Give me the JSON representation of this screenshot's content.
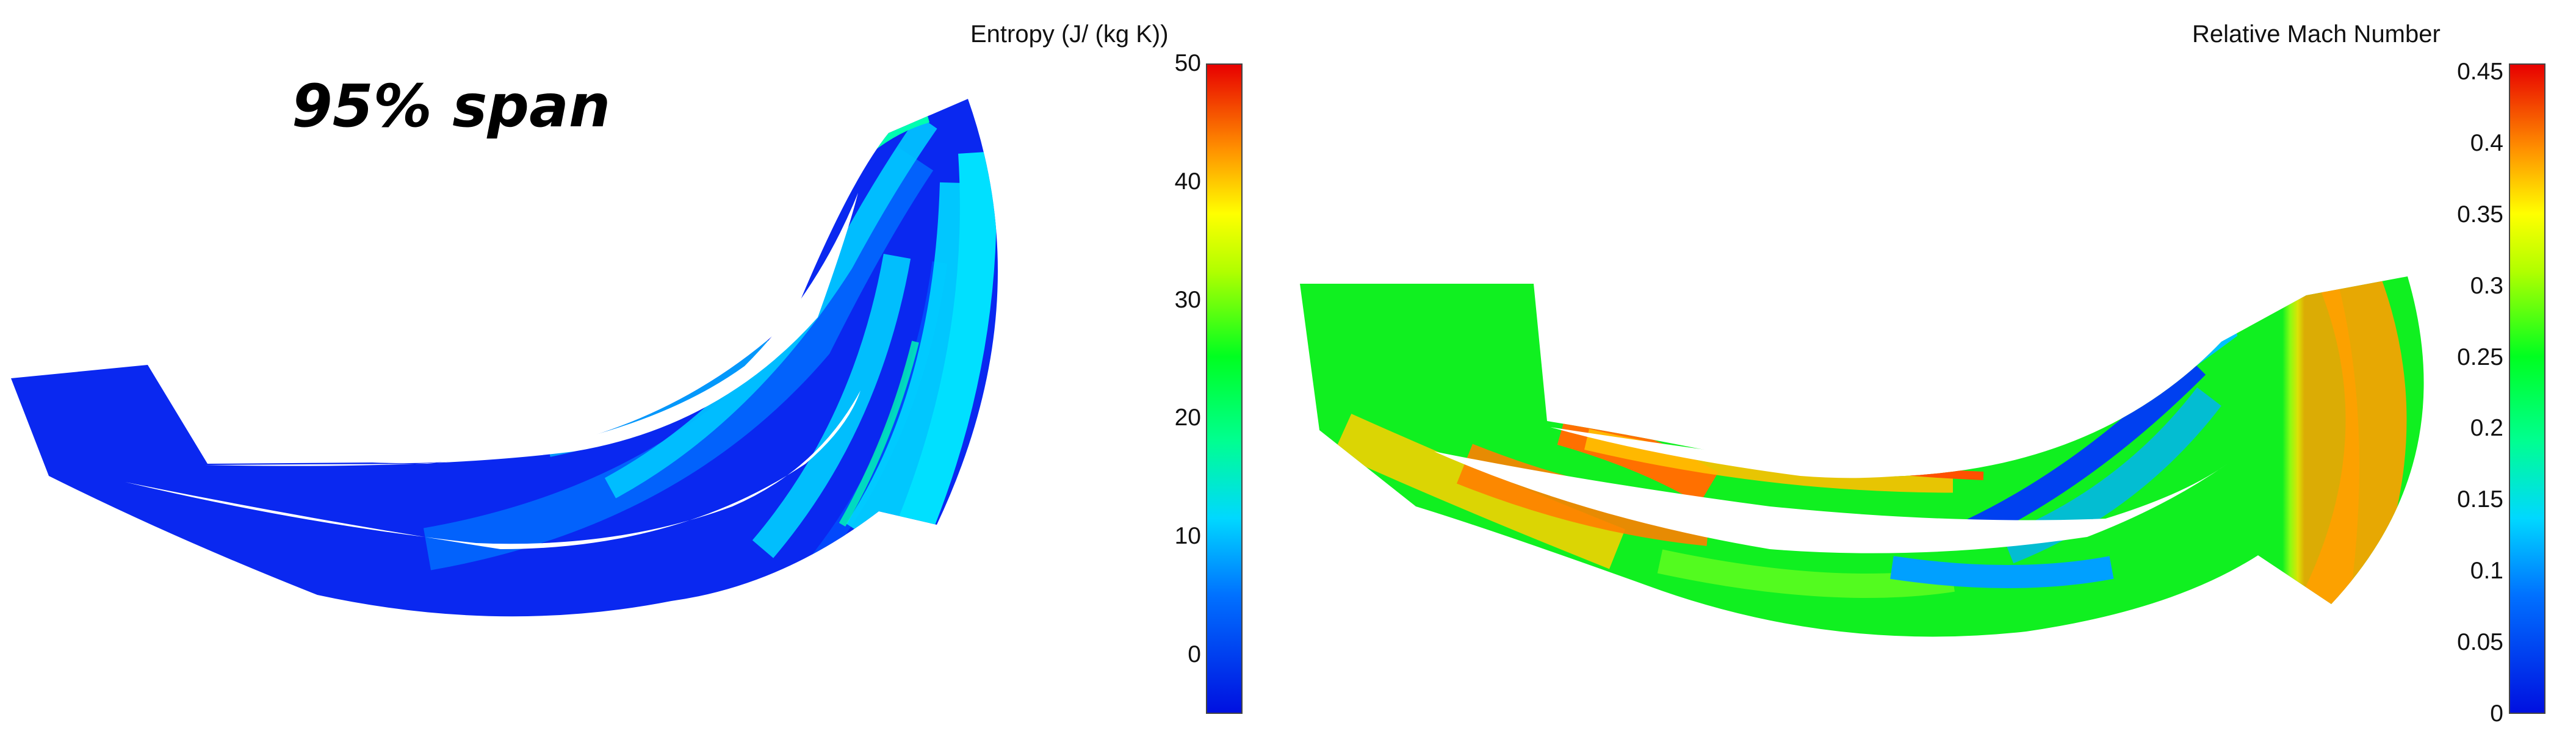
{
  "span_label": "95% span",
  "entropy_colorbar": {
    "title": "Entropy (J/ (kg K))",
    "ticks": [
      "50",
      "40",
      "30",
      "20",
      "10",
      "0"
    ],
    "min": -5,
    "max": 50
  },
  "mach_colorbar": {
    "title": "Relative Mach Number",
    "ticks": [
      "0.45",
      "0.4",
      "0.35",
      "0.3",
      "0.25",
      "0.2",
      "0.15",
      "0.1",
      "0.05",
      "0"
    ],
    "min": 0,
    "max": 0.45
  },
  "colors": {
    "scale": [
      "#0010e0",
      "#0060ff",
      "#00c8ff",
      "#00ffb0",
      "#00ff20",
      "#b8ff00",
      "#ffff00",
      "#ffa000",
      "#ff3000",
      "#e00000"
    ],
    "entropy_field_dominant": "#0a28f0",
    "mach_field_dominant": "#10f020"
  }
}
